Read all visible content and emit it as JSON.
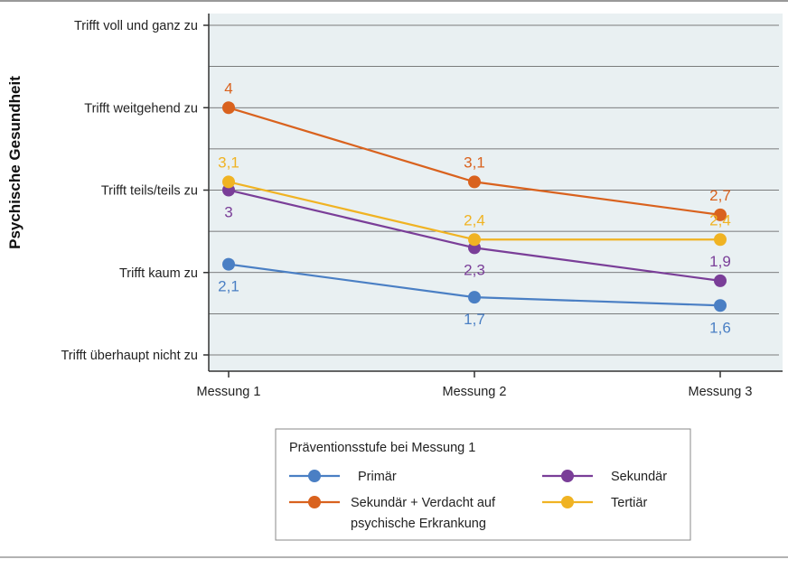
{
  "chart_data": {
    "type": "line",
    "ylabel": "Psychische Gesundheit",
    "xlabel": "",
    "categories": [
      "Messung 1",
      "Messung 2",
      "Messung 3"
    ],
    "y_ticks": [
      {
        "value": 1,
        "label": "Trifft überhaupt nicht zu"
      },
      {
        "value": 2,
        "label": "Trifft kaum zu"
      },
      {
        "value": 3,
        "label": "Trifft teils/teils zu"
      },
      {
        "value": 4,
        "label": "Trifft weitgehend zu"
      },
      {
        "value": 5,
        "label": "Trifft voll und ganz zu"
      }
    ],
    "ylim": [
      1,
      5
    ],
    "grid": true,
    "background_color": "#e9f0f2",
    "series": [
      {
        "name": "Primär",
        "color": "#4a7fc4",
        "values": [
          2.1,
          1.7,
          1.6
        ],
        "labels": [
          "2,1",
          "1,7",
          "1,6"
        ]
      },
      {
        "name": "Sekundär + Verdacht auf psychische Erkrankung",
        "name_lines": [
          "Sekundär + Verdacht auf",
          "psychische Erkrankung"
        ],
        "color": "#d9621e",
        "values": [
          4,
          3.1,
          2.7
        ],
        "labels": [
          "4",
          "3,1",
          "2,7"
        ]
      },
      {
        "name": "Sekundär",
        "color": "#7a3e98",
        "values": [
          3,
          2.3,
          1.9
        ],
        "labels": [
          "3",
          "2,3",
          "1,9"
        ]
      },
      {
        "name": "Tertiär",
        "color": "#f0b323",
        "values": [
          3.1,
          2.4,
          2.4
        ],
        "labels": [
          "3,1",
          "2,4",
          "2,4"
        ]
      }
    ],
    "legend": {
      "title": "Präventionsstufe bei Messung 1",
      "placement": "bottom"
    }
  }
}
